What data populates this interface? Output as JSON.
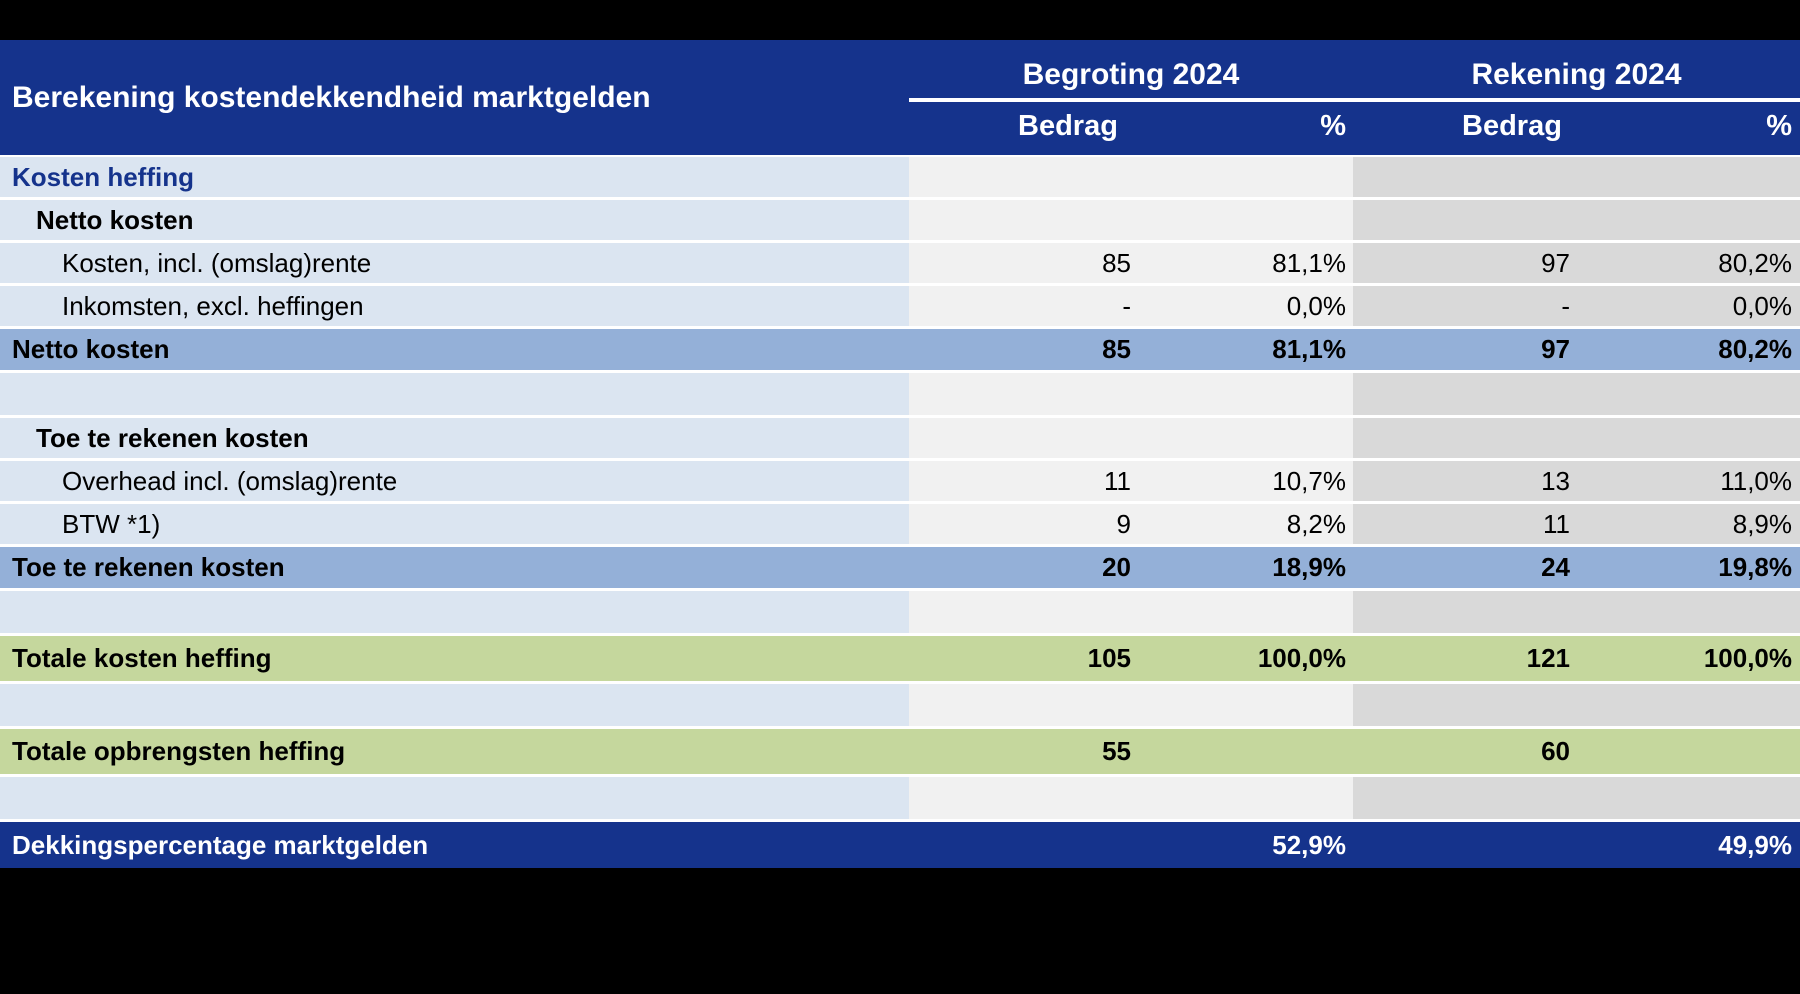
{
  "table": {
    "title": "Berekening kostendekkendheid marktgelden",
    "column_groups": [
      {
        "label": "Begroting 2024",
        "columns": [
          "Bedrag",
          "%"
        ]
      },
      {
        "label": "Rekening 2024",
        "columns": [
          "Bedrag",
          "%"
        ]
      }
    ],
    "rows": [
      {
        "label": "Kosten heffing",
        "indent": 0,
        "style": "section",
        "values": [
          "",
          "",
          "",
          ""
        ]
      },
      {
        "label": "Netto kosten",
        "indent": 1,
        "style": "boldlabel",
        "values": [
          "",
          "",
          "",
          ""
        ]
      },
      {
        "label": "Kosten, incl. (omslag)rente",
        "indent": 2,
        "style": "normal",
        "values": [
          "85",
          "81,1%",
          "97",
          "80,2%"
        ]
      },
      {
        "label": "Inkomsten, excl. heffingen",
        "indent": 2,
        "style": "normal",
        "values": [
          "-",
          "0,0%",
          "-",
          "0,0%"
        ]
      },
      {
        "label": "Netto kosten",
        "indent": 0,
        "style": "subtotal",
        "values": [
          "85",
          "81,1%",
          "97",
          "80,2%"
        ]
      },
      {
        "label": "",
        "indent": 0,
        "style": "empty",
        "values": [
          "",
          "",
          "",
          ""
        ]
      },
      {
        "label": "Toe te rekenen kosten",
        "indent": 1,
        "style": "boldlabel",
        "values": [
          "",
          "",
          "",
          ""
        ]
      },
      {
        "label": "Overhead incl. (omslag)rente",
        "indent": 2,
        "style": "normal",
        "values": [
          "11",
          "10,7%",
          "13",
          "11,0%"
        ]
      },
      {
        "label": "BTW *1)",
        "indent": 2,
        "style": "normal",
        "values": [
          "9",
          "8,2%",
          "11",
          "8,9%"
        ]
      },
      {
        "label": "Toe te rekenen kosten",
        "indent": 0,
        "style": "subtotal",
        "values": [
          "20",
          "18,9%",
          "24",
          "19,8%"
        ]
      },
      {
        "label": "",
        "indent": 0,
        "style": "empty",
        "values": [
          "",
          "",
          "",
          ""
        ]
      },
      {
        "label": "Totale kosten heffing",
        "indent": 0,
        "style": "green",
        "values": [
          "105",
          "100,0%",
          "121",
          "100,0%"
        ]
      },
      {
        "label": "",
        "indent": 0,
        "style": "empty",
        "values": [
          "",
          "",
          "",
          ""
        ]
      },
      {
        "label": "Totale opbrengsten heffing",
        "indent": 0,
        "style": "green",
        "values": [
          "55",
          "",
          "60",
          ""
        ]
      },
      {
        "label": "",
        "indent": 0,
        "style": "empty",
        "values": [
          "",
          "",
          "",
          ""
        ]
      },
      {
        "label": "Dekkingspercentage marktgelden",
        "indent": 0,
        "style": "navy",
        "values": [
          "",
          "52,9%",
          "",
          "49,9%"
        ]
      }
    ],
    "colors": {
      "header_navy": "#15338c",
      "label_column_blue": "#dbe5f1",
      "begroting_column_gray": "#f1f1f1",
      "rekening_column_gray": "#d9d9d9",
      "subtotal_blue": "#94b0d8",
      "total_green": "#c5d79d",
      "background": "#000000",
      "gridline_white": "#ffffff"
    }
  }
}
